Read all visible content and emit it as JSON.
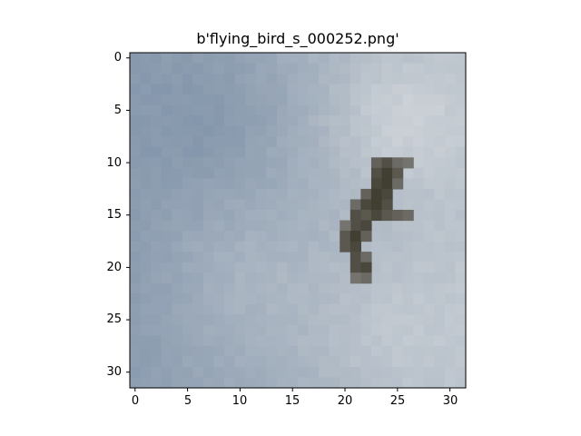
{
  "figure": {
    "title": "b'flying_bird_s_000252.png'",
    "x_ticks": [
      "0",
      "5",
      "10",
      "15",
      "20",
      "25",
      "30"
    ],
    "y_ticks": [
      "0",
      "5",
      "10",
      "15",
      "20",
      "25",
      "30"
    ]
  },
  "image": {
    "description_pixels": "32x32 pixelated photo",
    "sky_colors": [
      "#6e86a3",
      "#8197b0",
      "#9aacbf",
      "#b3c0cc",
      "#c5ced6"
    ],
    "bird_color": "#4a4436"
  }
}
